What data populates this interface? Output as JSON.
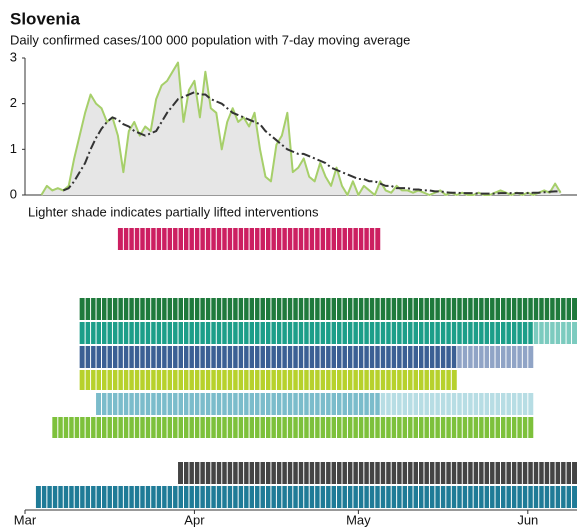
{
  "chart_data": {
    "type": "line",
    "title": "Slovenia",
    "subtitle": "Daily confirmed cases/100 000 population with 7-day moving average",
    "note": "Lighter shade indicates partially lifted interventions",
    "categories": [
      "Mar",
      null,
      null,
      null,
      null,
      null,
      null,
      null,
      null,
      null,
      null,
      null,
      null,
      null,
      null,
      null,
      null,
      null,
      null,
      null,
      null,
      null,
      null,
      null,
      null,
      null,
      null,
      null,
      null,
      null,
      null,
      "Apr",
      null,
      null,
      null,
      null,
      null,
      null,
      null,
      null,
      null,
      null,
      null,
      null,
      null,
      null,
      null,
      null,
      null,
      null,
      null,
      null,
      null,
      null,
      null,
      null,
      null,
      null,
      null,
      null,
      null,
      "May",
      null,
      null,
      null,
      null,
      null,
      null,
      null,
      null,
      null,
      null,
      null,
      null,
      null,
      null,
      null,
      null,
      null,
      null,
      null,
      null,
      null,
      null,
      null,
      null,
      null,
      null,
      null,
      null,
      null,
      null,
      "Jun",
      null,
      null,
      null,
      null,
      null,
      null,
      null,
      null
    ],
    "ylim": [
      0,
      3
    ],
    "yticks": [
      0,
      1,
      2,
      3
    ],
    "series": [
      {
        "color": "#a6cf6a",
        "values": [
          null,
          null,
          null,
          0,
          0.2,
          0.1,
          0.15,
          0.1,
          0.2,
          0.8,
          1.3,
          1.8,
          2.2,
          2.0,
          1.9,
          1.6,
          1.7,
          1.3,
          0.5,
          1.4,
          1.6,
          1.3,
          1.5,
          1.4,
          2.1,
          2.4,
          2.5,
          2.7,
          2.9,
          1.6,
          2.3,
          2.5,
          1.7,
          2.7,
          1.9,
          1.8,
          1.0,
          1.6,
          1.9,
          1.6,
          1.7,
          1.5,
          1.8,
          1.0,
          0.4,
          0.3,
          1.1,
          1.3,
          1.8,
          0.5,
          0.6,
          0.8,
          0.4,
          0.3,
          0.7,
          0.4,
          0.2,
          0.6,
          0.2,
          0,
          0.3,
          0,
          0.2,
          0.1,
          0,
          0.3,
          0.1,
          0.05,
          0.2,
          0.1,
          0.1,
          0.05,
          0.1,
          0.05,
          0,
          0.05,
          0.1,
          0,
          0.05,
          0,
          0.05,
          0,
          0,
          0.05,
          0,
          0,
          0.05,
          0.1,
          0.05,
          0,
          0.05,
          0,
          0.05,
          0,
          0.05,
          0.1,
          0.05,
          0.25,
          0.05,
          null,
          null
        ]
      },
      {
        "color": "#333333",
        "values": [
          null,
          null,
          null,
          null,
          null,
          null,
          null,
          0.1,
          0.15,
          0.3,
          0.5,
          0.7,
          1.0,
          1.25,
          1.45,
          1.6,
          1.7,
          1.65,
          1.55,
          1.5,
          1.4,
          1.35,
          1.3,
          1.35,
          1.4,
          1.6,
          1.8,
          1.95,
          2.1,
          2.15,
          2.2,
          2.25,
          2.2,
          2.2,
          2.1,
          2.05,
          2.0,
          1.9,
          1.8,
          1.75,
          1.7,
          1.65,
          1.6,
          1.55,
          1.4,
          1.3,
          1.2,
          1.1,
          1.0,
          0.95,
          0.9,
          0.9,
          0.85,
          0.8,
          0.75,
          0.7,
          0.6,
          0.55,
          0.5,
          0.45,
          0.4,
          0.35,
          0.35,
          0.3,
          0.3,
          0.25,
          0.2,
          0.2,
          0.15,
          0.15,
          0.15,
          0.12,
          0.12,
          0.1,
          0.1,
          0.08,
          0.08,
          0.06,
          0.05,
          0.05,
          0.04,
          0.04,
          0.04,
          0.03,
          0.03,
          0.03,
          0.03,
          0.04,
          0.04,
          0.04,
          0.04,
          0.04,
          0.04,
          0.05,
          0.05,
          0.06,
          0.07,
          0.08,
          0.08,
          null,
          null
        ]
      }
    ],
    "interventions": [
      {
        "color": "#cc1f61",
        "start": 17,
        "end": 65
      },
      {
        "color": "#1f7a3c",
        "start": 10,
        "end": 101
      },
      {
        "color": "#1c9e89",
        "lifted_color": "#7ccbbf",
        "start": 10,
        "lifted": 93,
        "end": 101
      },
      {
        "color": "#3b5f94",
        "lifted_color": "#90a4c6",
        "start": 10,
        "lifted": 79,
        "end": 93
      },
      {
        "color": "#b7d12c",
        "start": 10,
        "end": 79
      },
      {
        "color": "#7bbccb",
        "lifted_color": "#b7dde4",
        "start": 13,
        "lifted": 65,
        "end": 93
      },
      {
        "color": "#7dc13b",
        "start": 5,
        "end": 93
      },
      {
        "color": "#444444",
        "start": 28,
        "end": 101
      },
      {
        "color": "#1f7b97",
        "start": 2,
        "end": 101
      }
    ]
  }
}
